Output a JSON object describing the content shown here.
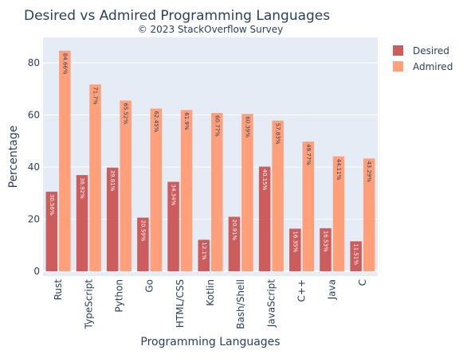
{
  "chart_data": {
    "type": "bar",
    "title": "Desired vs Admired Programming Languages",
    "subtitle": "© 2023 StackOverflow Survey",
    "xlabel": "Programming Languages",
    "ylabel": "Percentage",
    "ylim": [
      0,
      90
    ],
    "yticks": [
      0,
      20,
      40,
      60,
      80
    ],
    "grid": true,
    "legend_position": "top-right",
    "categories": [
      "Rust",
      "TypeScript",
      "Python",
      "Go",
      "HTML/CSS",
      "Kotlin",
      "Bash/Shell",
      "JavaScript",
      "C++",
      "Java",
      "C"
    ],
    "series": [
      {
        "name": "Desired",
        "color": "#CD5C5C",
        "label_color": "#ffffff",
        "values": [
          30.56,
          36.92,
          39.81,
          20.59,
          34.34,
          12.1,
          20.91,
          40.15,
          16.35,
          16.53,
          11.51
        ],
        "labels": [
          "30.56%",
          "36.92%",
          "39.81%",
          "20.59%",
          "34.34%",
          "12.1%",
          "20.91%",
          "40.15%",
          "16.35%",
          "16.53%",
          "11.51%"
        ]
      },
      {
        "name": "Admired",
        "color": "#FFA07A",
        "label_color": "#2a3f5f",
        "values": [
          84.66,
          71.7,
          65.52,
          62.45,
          61.9,
          60.77,
          60.39,
          57.83,
          49.77,
          44.11,
          43.29
        ],
        "labels": [
          "84.66%",
          "71.7%",
          "65.52%",
          "62.45%",
          "61.9%",
          "60.77%",
          "60.39%",
          "57.83%",
          "49.77%",
          "44.11%",
          "43.29%"
        ]
      }
    ]
  },
  "colors": {
    "plot_background": "#E5ECF6",
    "gridline": "#ffffff",
    "text": "#2a3f5f"
  }
}
